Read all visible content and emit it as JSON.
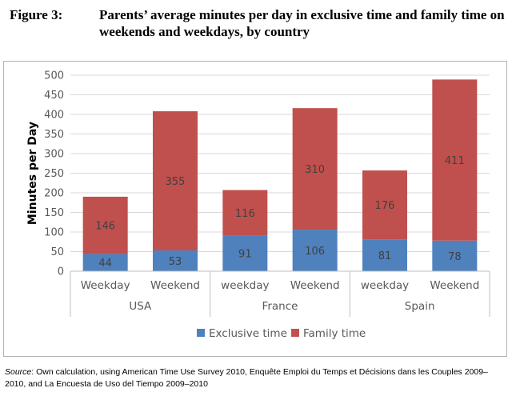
{
  "figure": {
    "label": "Figure 3:",
    "title": "Parents’ average minutes per day in exclusive time and family time on weekends and weekdays, by country"
  },
  "source": {
    "label": "Source",
    "text": ": Own calculation, using American Time Use Survey 2010, Enquête Emploi du Temps et Décisions dans les Couples 2009–2010, and La Encuesta de Uso del Tiempo 2009–2010"
  },
  "chart_data": {
    "type": "bar",
    "stacked": true,
    "ylabel": "Minutes per Day",
    "ylim": [
      0,
      500
    ],
    "yticks": [
      0,
      50,
      100,
      150,
      200,
      250,
      300,
      350,
      400,
      450,
      500
    ],
    "grid": true,
    "legend_position": "bottom",
    "groups": [
      {
        "name": "USA",
        "categories": [
          "Weekday",
          "Weekend"
        ]
      },
      {
        "name": "France",
        "categories": [
          "weekday",
          "Weekend"
        ]
      },
      {
        "name": "Spain",
        "categories": [
          "weekday",
          "Weekend"
        ]
      }
    ],
    "series": [
      {
        "name": "Exclusive time",
        "color": "#4f81bd",
        "values": [
          44,
          53,
          91,
          106,
          81,
          78
        ]
      },
      {
        "name": "Family time",
        "color": "#c0504d",
        "values": [
          146,
          355,
          116,
          310,
          176,
          411
        ]
      }
    ]
  }
}
